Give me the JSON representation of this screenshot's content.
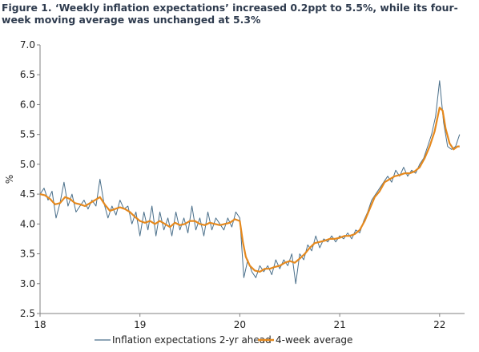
{
  "figure": {
    "title": "Figure 1. ‘Weekly inflation expectations’ increased 0.2ppt to 5.5%, while its four-week moving average was unchanged at 5.3%"
  },
  "chart_data": {
    "type": "line",
    "title": "Figure 1. ‘Weekly inflation expectations’ increased 0.2ppt to 5.5%, while its four-week moving average was unchanged at 5.3%",
    "xlabel": "",
    "ylabel": "%",
    "xlim": [
      2018,
      2022.25
    ],
    "ylim": [
      2.5,
      7.0
    ],
    "x_ticks": [
      2018,
      2019,
      2020,
      2021,
      2022
    ],
    "x_tick_labels": [
      "18",
      "19",
      "20",
      "21",
      "22"
    ],
    "y_ticks": [
      2.5,
      3.0,
      3.5,
      4.0,
      4.5,
      5.0,
      5.5,
      6.0,
      6.5,
      7.0
    ],
    "y_tick_labels": [
      "2.5",
      "3.0",
      "3.5",
      "4.0",
      "4.5",
      "5.0",
      "5.5",
      "6.0",
      "6.5",
      "7.0"
    ],
    "grid": false,
    "legend_position": "bottom",
    "series": [
      {
        "name": "Inflation expectations 2-yr ahead",
        "color": "#4a6f8a",
        "points": [
          [
            2018.0,
            4.5
          ],
          [
            2018.04,
            4.6
          ],
          [
            2018.08,
            4.4
          ],
          [
            2018.12,
            4.55
          ],
          [
            2018.16,
            4.1
          ],
          [
            2018.2,
            4.35
          ],
          [
            2018.24,
            4.7
          ],
          [
            2018.28,
            4.3
          ],
          [
            2018.32,
            4.5
          ],
          [
            2018.36,
            4.2
          ],
          [
            2018.4,
            4.3
          ],
          [
            2018.44,
            4.4
          ],
          [
            2018.48,
            4.25
          ],
          [
            2018.52,
            4.4
          ],
          [
            2018.56,
            4.3
          ],
          [
            2018.6,
            4.75
          ],
          [
            2018.64,
            4.35
          ],
          [
            2018.68,
            4.1
          ],
          [
            2018.72,
            4.3
          ],
          [
            2018.76,
            4.15
          ],
          [
            2018.8,
            4.4
          ],
          [
            2018.84,
            4.25
          ],
          [
            2018.88,
            4.3
          ],
          [
            2018.92,
            4.0
          ],
          [
            2018.96,
            4.2
          ],
          [
            2019.0,
            3.8
          ],
          [
            2019.04,
            4.2
          ],
          [
            2019.08,
            3.9
          ],
          [
            2019.12,
            4.3
          ],
          [
            2019.16,
            3.8
          ],
          [
            2019.2,
            4.2
          ],
          [
            2019.24,
            3.9
          ],
          [
            2019.28,
            4.1
          ],
          [
            2019.32,
            3.8
          ],
          [
            2019.36,
            4.2
          ],
          [
            2019.4,
            3.9
          ],
          [
            2019.44,
            4.1
          ],
          [
            2019.48,
            3.85
          ],
          [
            2019.52,
            4.3
          ],
          [
            2019.56,
            3.9
          ],
          [
            2019.6,
            4.1
          ],
          [
            2019.64,
            3.8
          ],
          [
            2019.68,
            4.2
          ],
          [
            2019.72,
            3.9
          ],
          [
            2019.76,
            4.1
          ],
          [
            2019.8,
            4.0
          ],
          [
            2019.84,
            3.9
          ],
          [
            2019.88,
            4.1
          ],
          [
            2019.92,
            3.95
          ],
          [
            2019.96,
            4.2
          ],
          [
            2020.0,
            4.1
          ],
          [
            2020.04,
            3.1
          ],
          [
            2020.08,
            3.4
          ],
          [
            2020.12,
            3.2
          ],
          [
            2020.16,
            3.1
          ],
          [
            2020.2,
            3.3
          ],
          [
            2020.24,
            3.2
          ],
          [
            2020.28,
            3.3
          ],
          [
            2020.32,
            3.15
          ],
          [
            2020.36,
            3.4
          ],
          [
            2020.4,
            3.25
          ],
          [
            2020.44,
            3.4
          ],
          [
            2020.48,
            3.3
          ],
          [
            2020.52,
            3.5
          ],
          [
            2020.56,
            3.0
          ],
          [
            2020.6,
            3.5
          ],
          [
            2020.64,
            3.4
          ],
          [
            2020.68,
            3.65
          ],
          [
            2020.72,
            3.55
          ],
          [
            2020.76,
            3.8
          ],
          [
            2020.8,
            3.6
          ],
          [
            2020.84,
            3.75
          ],
          [
            2020.88,
            3.7
          ],
          [
            2020.92,
            3.8
          ],
          [
            2020.96,
            3.7
          ],
          [
            2021.0,
            3.8
          ],
          [
            2021.04,
            3.75
          ],
          [
            2021.08,
            3.85
          ],
          [
            2021.12,
            3.75
          ],
          [
            2021.16,
            3.9
          ],
          [
            2021.2,
            3.85
          ],
          [
            2021.24,
            4.05
          ],
          [
            2021.28,
            4.2
          ],
          [
            2021.32,
            4.4
          ],
          [
            2021.36,
            4.5
          ],
          [
            2021.4,
            4.6
          ],
          [
            2021.44,
            4.7
          ],
          [
            2021.48,
            4.8
          ],
          [
            2021.52,
            4.7
          ],
          [
            2021.56,
            4.9
          ],
          [
            2021.6,
            4.8
          ],
          [
            2021.64,
            4.95
          ],
          [
            2021.68,
            4.8
          ],
          [
            2021.72,
            4.9
          ],
          [
            2021.76,
            4.85
          ],
          [
            2021.8,
            5.0
          ],
          [
            2021.84,
            5.1
          ],
          [
            2021.88,
            5.3
          ],
          [
            2021.92,
            5.5
          ],
          [
            2021.96,
            5.8
          ],
          [
            2022.0,
            6.4
          ],
          [
            2022.04,
            5.7
          ],
          [
            2022.08,
            5.3
          ],
          [
            2022.12,
            5.25
          ],
          [
            2022.16,
            5.3
          ],
          [
            2022.2,
            5.5
          ]
        ]
      },
      {
        "name": "4-week average",
        "color": "#e5891e",
        "points": [
          [
            2018.0,
            4.5
          ],
          [
            2018.05,
            4.48
          ],
          [
            2018.1,
            4.42
          ],
          [
            2018.15,
            4.33
          ],
          [
            2018.2,
            4.35
          ],
          [
            2018.25,
            4.45
          ],
          [
            2018.3,
            4.42
          ],
          [
            2018.35,
            4.35
          ],
          [
            2018.4,
            4.33
          ],
          [
            2018.45,
            4.3
          ],
          [
            2018.5,
            4.35
          ],
          [
            2018.55,
            4.4
          ],
          [
            2018.6,
            4.45
          ],
          [
            2018.65,
            4.32
          ],
          [
            2018.7,
            4.22
          ],
          [
            2018.75,
            4.25
          ],
          [
            2018.8,
            4.28
          ],
          [
            2018.85,
            4.25
          ],
          [
            2018.9,
            4.2
          ],
          [
            2018.95,
            4.12
          ],
          [
            2019.0,
            4.05
          ],
          [
            2019.05,
            4.02
          ],
          [
            2019.1,
            4.05
          ],
          [
            2019.15,
            4.0
          ],
          [
            2019.2,
            4.05
          ],
          [
            2019.25,
            4.0
          ],
          [
            2019.3,
            3.95
          ],
          [
            2019.35,
            4.02
          ],
          [
            2019.4,
            3.98
          ],
          [
            2019.45,
            4.0
          ],
          [
            2019.5,
            4.05
          ],
          [
            2019.55,
            4.05
          ],
          [
            2019.6,
            4.0
          ],
          [
            2019.65,
            3.98
          ],
          [
            2019.7,
            4.02
          ],
          [
            2019.75,
            4.0
          ],
          [
            2019.8,
            3.98
          ],
          [
            2019.85,
            4.0
          ],
          [
            2019.9,
            4.02
          ],
          [
            2019.95,
            4.08
          ],
          [
            2020.0,
            4.05
          ],
          [
            2020.03,
            3.7
          ],
          [
            2020.06,
            3.45
          ],
          [
            2020.1,
            3.3
          ],
          [
            2020.15,
            3.22
          ],
          [
            2020.2,
            3.2
          ],
          [
            2020.25,
            3.25
          ],
          [
            2020.3,
            3.25
          ],
          [
            2020.35,
            3.28
          ],
          [
            2020.4,
            3.3
          ],
          [
            2020.45,
            3.35
          ],
          [
            2020.5,
            3.38
          ],
          [
            2020.55,
            3.35
          ],
          [
            2020.6,
            3.42
          ],
          [
            2020.65,
            3.5
          ],
          [
            2020.7,
            3.6
          ],
          [
            2020.75,
            3.68
          ],
          [
            2020.8,
            3.7
          ],
          [
            2020.85,
            3.72
          ],
          [
            2020.9,
            3.75
          ],
          [
            2020.95,
            3.75
          ],
          [
            2021.0,
            3.77
          ],
          [
            2021.05,
            3.8
          ],
          [
            2021.1,
            3.8
          ],
          [
            2021.15,
            3.83
          ],
          [
            2021.2,
            3.9
          ],
          [
            2021.25,
            4.05
          ],
          [
            2021.3,
            4.25
          ],
          [
            2021.35,
            4.45
          ],
          [
            2021.4,
            4.55
          ],
          [
            2021.45,
            4.7
          ],
          [
            2021.5,
            4.75
          ],
          [
            2021.55,
            4.8
          ],
          [
            2021.6,
            4.82
          ],
          [
            2021.65,
            4.85
          ],
          [
            2021.7,
            4.85
          ],
          [
            2021.75,
            4.88
          ],
          [
            2021.8,
            4.95
          ],
          [
            2021.85,
            5.1
          ],
          [
            2021.9,
            5.3
          ],
          [
            2021.95,
            5.55
          ],
          [
            2022.0,
            5.95
          ],
          [
            2022.03,
            5.9
          ],
          [
            2022.06,
            5.6
          ],
          [
            2022.1,
            5.35
          ],
          [
            2022.14,
            5.25
          ],
          [
            2022.18,
            5.3
          ],
          [
            2022.2,
            5.3
          ]
        ]
      }
    ]
  }
}
